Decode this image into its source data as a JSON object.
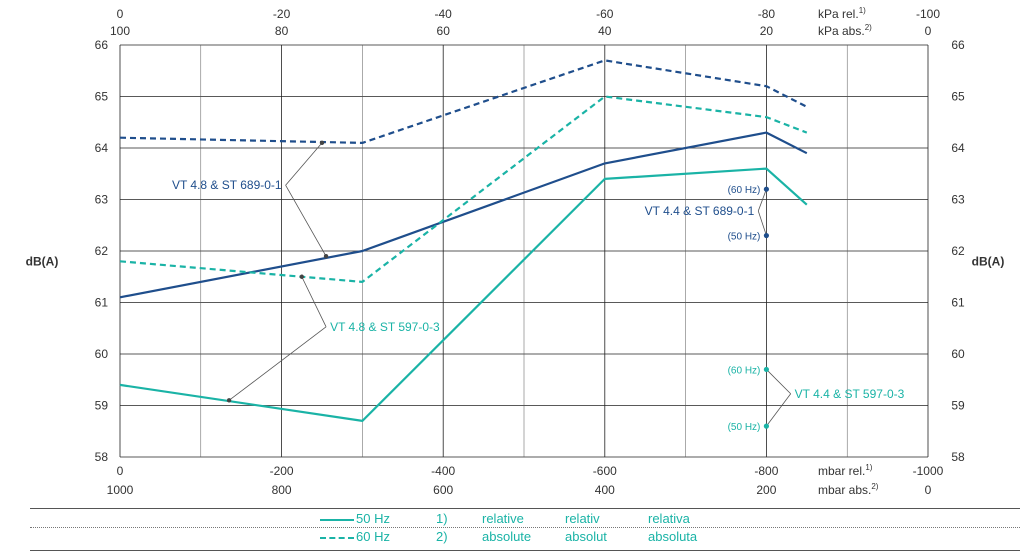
{
  "chart_data": {
    "type": "line",
    "ylabel_left": "dB(A)",
    "ylabel_right": "dB(A)",
    "ylim": [
      58,
      66
    ],
    "yticks": [
      58,
      59,
      60,
      61,
      62,
      63,
      64,
      65,
      66
    ],
    "xlim": [
      0,
      -1000
    ],
    "x_bottom_rel_ticks": [
      "0",
      "-200",
      "-400",
      "-600",
      "-800",
      "-1000"
    ],
    "x_bottom_rel_label": "mbar rel.",
    "x_bottom_rel_sup": "1)",
    "x_bottom_abs_ticks": [
      "1000",
      "800",
      "600",
      "400",
      "200",
      "0"
    ],
    "x_bottom_abs_label": "mbar abs.",
    "x_bottom_abs_sup": "2)",
    "x_top_rel_ticks": [
      "0",
      "-20",
      "-40",
      "-60",
      "-80",
      "-100"
    ],
    "x_top_rel_label": "kPa rel.",
    "x_top_rel_sup": "1)",
    "x_top_abs_ticks": [
      "100",
      "80",
      "60",
      "40",
      "20",
      "0"
    ],
    "x_top_abs_label": "kPa abs.",
    "x_top_abs_sup": "2)",
    "grid": true,
    "series": [
      {
        "color": "#1f4e8c",
        "dash": false,
        "points": [
          [
            0,
            61.1
          ],
          [
            -300,
            62.0
          ],
          [
            -600,
            63.7
          ],
          [
            -800,
            64.3
          ],
          [
            -850,
            63.9
          ]
        ]
      },
      {
        "color": "#1f4e8c",
        "dash": true,
        "points": [
          [
            0,
            64.2
          ],
          [
            -300,
            64.1
          ],
          [
            -600,
            65.7
          ],
          [
            -800,
            65.2
          ],
          [
            -850,
            64.8
          ]
        ]
      },
      {
        "color": "#1ab3a6",
        "dash": false,
        "points": [
          [
            0,
            59.4
          ],
          [
            -300,
            58.7
          ],
          [
            -600,
            63.4
          ],
          [
            -800,
            63.6
          ],
          [
            -850,
            62.9
          ]
        ]
      },
      {
        "color": "#1ab3a6",
        "dash": true,
        "points": [
          [
            0,
            61.8
          ],
          [
            -300,
            61.4
          ],
          [
            -600,
            65.0
          ],
          [
            -800,
            64.6
          ],
          [
            -850,
            64.3
          ]
        ]
      }
    ],
    "annotations": [
      {
        "text": "VT 4.8 & ST 689-0-1",
        "color": "#1f4e8c",
        "text_at": [
          -200,
          63.2
        ],
        "anchor": "end",
        "leaders": [
          [
            -250,
            64.1
          ],
          [
            -255,
            61.9
          ]
        ]
      },
      {
        "text": "VT 4.8 & ST 597-0-3",
        "color": "#1ab3a6",
        "text_at": [
          -260,
          60.45
        ],
        "anchor": "start",
        "leaders": [
          [
            -225,
            61.5
          ],
          [
            -135,
            59.1
          ]
        ]
      },
      {
        "text": "VT 4.4 & ST 689-0-1",
        "color": "#1f4e8c",
        "text_at": [
          -785,
          62.7
        ],
        "anchor": "end",
        "leaders": [
          [
            -800,
            63.2
          ],
          [
            -800,
            62.3
          ]
        ]
      },
      {
        "text": "VT 4.4 & ST 597-0-3",
        "color": "#1ab3a6",
        "text_at": [
          -835,
          59.15
        ],
        "anchor": "start",
        "leaders": [
          [
            -800,
            59.7
          ],
          [
            -800,
            58.6
          ]
        ]
      }
    ],
    "hz_labels": [
      {
        "text": "(60 Hz)",
        "color": "#1f4e8c",
        "at": [
          -800,
          63.2
        ]
      },
      {
        "text": "(50 Hz)",
        "color": "#1f4e8c",
        "at": [
          -800,
          62.3
        ]
      },
      {
        "text": "(60 Hz)",
        "color": "#1ab3a6",
        "at": [
          -800,
          59.7
        ]
      },
      {
        "text": "(50 Hz)",
        "color": "#1ab3a6",
        "at": [
          -800,
          58.6
        ]
      }
    ]
  },
  "legend": {
    "solid_label": "50 Hz",
    "dashed_label": "60 Hz",
    "color": "#1ab3a6",
    "note1_num": "1)",
    "note2_num": "2)",
    "note1_words": [
      "relative",
      "relativ",
      "relativa"
    ],
    "note2_words": [
      "absolute",
      "absolut",
      "absoluta"
    ]
  }
}
